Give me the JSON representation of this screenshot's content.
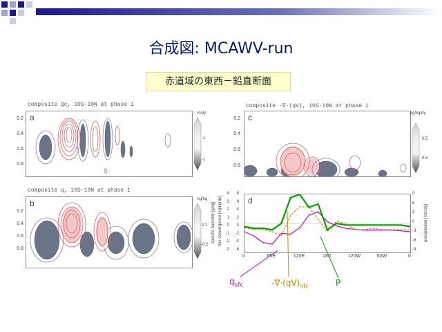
{
  "slide": {
    "title": "合成図: MCAWV-run",
    "subtitle": "赤道域の東西－鉛直断面",
    "accent_color": "#1a1a8a"
  },
  "panels": {
    "a": {
      "letter": "a",
      "title": "composite Qc, 10S-10N at phase 1",
      "unit": "K/dy",
      "cbar_ticks": [
        "1",
        "-1"
      ],
      "yticks": [
        "0.2",
        "0.4",
        "0.6",
        "0.8"
      ]
    },
    "b": {
      "letter": "b",
      "title": "composite q, 10S-10N at phase 1",
      "unit": "kg/kg",
      "cbar_ticks": [
        "0.2",
        "-0.2"
      ],
      "yticks": [
        "0.2",
        "0.4",
        "0.6",
        "0.8"
      ]
    },
    "c": {
      "letter": "c",
      "title": "composite  -∇·(qV), 10S-10N at phase 1",
      "unit": "kg/kg/dy",
      "cbar_ticks": [
        "0.5",
        "-0.5"
      ],
      "yticks": [
        "0.2",
        "0.4",
        "0.6",
        "0.8"
      ]
    },
    "d": {
      "letter": "d",
      "ylabel_left_1": "specific humidity [g/kg]",
      "ylabel_left_2": "flux convergence [kg/kg/dy]",
      "ylabel_right": "precipitation [mm/dy]",
      "yticks_left_1": [
        "4",
        "3",
        "2",
        "1",
        "0",
        "-1",
        "-2",
        "-3"
      ],
      "yticks_left_2": [
        "8",
        "6",
        "4",
        "2",
        "0",
        "-2",
        "-4",
        "-6"
      ],
      "yticks_right": [
        "9",
        "6",
        "3",
        "0",
        "-3",
        "-6",
        "-9"
      ],
      "xticks": [
        "0",
        "60E",
        "120E",
        "180",
        "120W",
        "60W",
        "0"
      ]
    }
  },
  "annotations": {
    "q_sfc": {
      "base": "q",
      "sub": "sfc",
      "color": "#cc00cc"
    },
    "flux": {
      "base": "-∇·(qV)",
      "sub": "sfc",
      "color": "#e08000"
    },
    "P": {
      "label": "P",
      "color": "#00a000"
    }
  },
  "chart_data": {
    "type": "line",
    "x": [
      0,
      20,
      40,
      60,
      80,
      100,
      120,
      140,
      160,
      180,
      200,
      220,
      240,
      260,
      280,
      300,
      320,
      340,
      360
    ],
    "xlabel": "",
    "xlim": [
      0,
      360
    ],
    "ylim_right": [
      -9,
      9
    ],
    "ylim_left_1": [
      -3,
      4
    ],
    "ylim_left_2": [
      -6,
      8
    ],
    "series": [
      {
        "name": "P",
        "axis": "right",
        "color": "#00a000",
        "values": [
          -1,
          -1.5,
          -1.5,
          -2,
          0,
          8,
          9,
          5,
          6,
          -2,
          0,
          -0.5,
          -0.5,
          -0.5,
          -0.5,
          -0.5,
          -0.5,
          -0.5,
          -1
        ]
      },
      {
        "name": "-∇·(qV)sfc",
        "axis": "left_2",
        "color": "#e08000",
        "values": [
          0,
          -0.5,
          -0.5,
          -1,
          -2,
          3,
          5,
          5,
          2,
          -1,
          1.5,
          1,
          -0.5,
          -0.5,
          -0.2,
          -0.5,
          -0.5,
          -0.5,
          -0.5
        ]
      },
      {
        "name": "qsfc",
        "axis": "left_1",
        "color": "#cc00cc",
        "values": [
          -0.5,
          -1,
          -1.8,
          -2,
          -0.7,
          -0.8,
          0,
          1.5,
          1.9,
          0.7,
          0.2,
          -0.1,
          -0.2,
          -0.3,
          -0.3,
          -0.3,
          -0.3,
          -0.4,
          -0.5
        ]
      }
    ]
  }
}
